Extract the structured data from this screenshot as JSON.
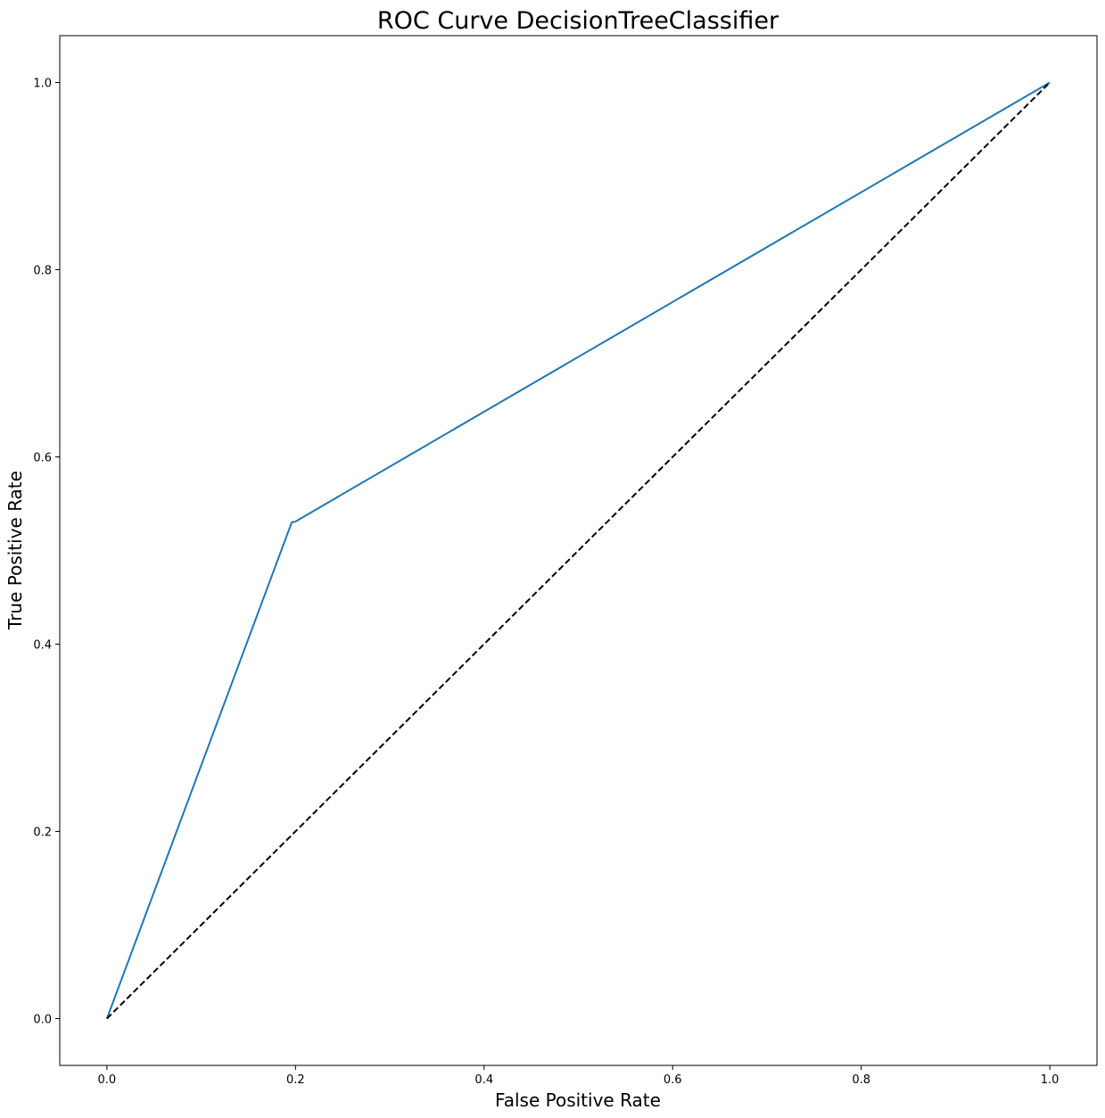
{
  "chart_data": {
    "type": "line",
    "title": "ROC Curve DecisionTreeClassifier",
    "xlabel": "False Positive Rate",
    "ylabel": "True Positive Rate",
    "xlim": [
      -0.05,
      1.05
    ],
    "ylim": [
      -0.05,
      1.05
    ],
    "xticks": [
      0.0,
      0.2,
      0.4,
      0.6,
      0.8,
      1.0
    ],
    "xtick_labels": [
      "0.0",
      "0.2",
      "0.4",
      "0.6",
      "0.8",
      "1.0"
    ],
    "yticks": [
      0.0,
      0.2,
      0.4,
      0.6,
      0.8,
      1.0
    ],
    "ytick_labels": [
      "0.0",
      "0.2",
      "0.4",
      "0.6",
      "0.8",
      "1.0"
    ],
    "grid": false,
    "legend": "none",
    "series": [
      {
        "color": "#1f77b4",
        "style": "solid",
        "x": [
          0.0,
          0.196,
          0.2,
          1.0
        ],
        "y": [
          0.0,
          0.53,
          0.531,
          1.0
        ]
      },
      {
        "color": "#000000",
        "style": "dashed",
        "x": [
          0.0,
          1.0
        ],
        "y": [
          0.0,
          1.0
        ]
      }
    ]
  }
}
